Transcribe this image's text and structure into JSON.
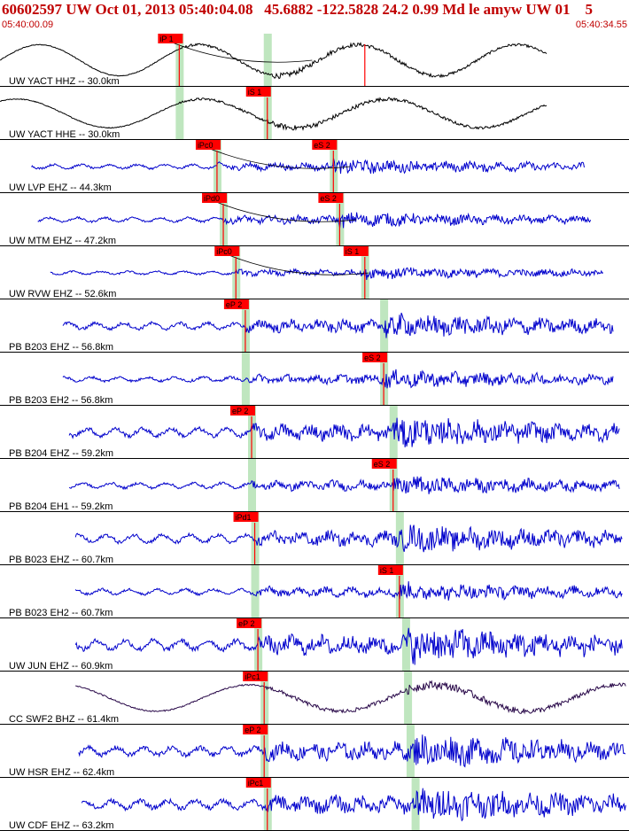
{
  "header": {
    "title": "60602597 UW Oct 01, 2013 05:40:04.08   45.6882 -122.5828 24.2 0.99 Md le amyw UW 01    5",
    "start_time": "05:40:00.09",
    "end_time": "05:40:34.55"
  },
  "colors": {
    "header_text": "#c00000",
    "trace_blue": "#0000cc",
    "trace_black": "#000000",
    "trace_purple": "#2a0a4a",
    "pick_box": "#ff0000",
    "window_band": "#bfe6bf",
    "divider": "#000000"
  },
  "chart_data": {
    "type": "line",
    "title": "",
    "x_range_seconds": [
      0,
      34.46
    ],
    "tracks": [
      {
        "label": "UW YACT HHZ -- 30.0km",
        "color": "black",
        "amp": 0.65,
        "freq": 0.7,
        "noise": 0.05,
        "start": 0.0,
        "end": 0.87,
        "picks": [
          {
            "label": "iP 1",
            "x": 0.285
          },
          {
            "label": "",
            "x": 0.58
          }
        ],
        "windows": [
          0.285,
          0.425
        ],
        "moveout": 1
      },
      {
        "label": "UW YACT HHE -- 30.0km",
        "color": "black",
        "amp": 0.6,
        "freq": 0.6,
        "noise": 0.05,
        "start": 0.0,
        "end": 0.87,
        "picks": [
          {
            "label": "iS 1",
            "x": 0.425
          }
        ],
        "windows": [
          0.285,
          0.425
        ],
        "moveout": 0
      },
      {
        "label": "UW LVP EHZ -- 44.3km",
        "color": "blue",
        "amp": 0.08,
        "freq": 4,
        "noise": 0.12,
        "start": 0.05,
        "end": 0.93,
        "picks": [
          {
            "label": "iPc0",
            "x": 0.345
          },
          {
            "label": "eS 2",
            "x": 0.53
          }
        ],
        "windows": [
          0.345,
          0.53
        ],
        "moveout": 1
      },
      {
        "label": "UW MTM EHZ -- 47.2km",
        "color": "blue",
        "amp": 0.08,
        "freq": 4,
        "noise": 0.12,
        "start": 0.06,
        "end": 0.94,
        "picks": [
          {
            "label": "iPd0",
            "x": 0.355
          },
          {
            "label": "eS 2",
            "x": 0.54
          }
        ],
        "windows": [
          0.355,
          0.54
        ],
        "moveout": 1
      },
      {
        "label": "UW RVW EHZ -- 52.6km",
        "color": "blue",
        "amp": 0.06,
        "freq": 4,
        "noise": 0.1,
        "start": 0.08,
        "end": 0.96,
        "picks": [
          {
            "label": "iPc0",
            "x": 0.375
          },
          {
            "label": "iS 1",
            "x": 0.58
          }
        ],
        "windows": [
          0.375,
          0.58
        ],
        "moveout": 1
      },
      {
        "label": "PB B203 EHZ -- 56.8km",
        "color": "blue",
        "amp": 0.12,
        "freq": 4,
        "noise": 0.2,
        "start": 0.1,
        "end": 0.975,
        "picks": [
          {
            "label": "eP 2",
            "x": 0.39
          }
        ],
        "windows": [
          0.39,
          0.61
        ],
        "moveout": 0
      },
      {
        "label": "PB B203 EH2 -- 56.8km",
        "color": "blue",
        "amp": 0.08,
        "freq": 4,
        "noise": 0.15,
        "start": 0.1,
        "end": 0.975,
        "picks": [
          {
            "label": "eS 2",
            "x": 0.61
          }
        ],
        "windows": [
          0.39,
          0.61
        ],
        "moveout": 0
      },
      {
        "label": "PB B204 EHZ -- 59.2km",
        "color": "blue",
        "amp": 0.15,
        "freq": 4,
        "noise": 0.25,
        "start": 0.11,
        "end": 0.985,
        "picks": [
          {
            "label": "eP 2",
            "x": 0.4
          }
        ],
        "windows": [
          0.4,
          0.625
        ],
        "moveout": 0
      },
      {
        "label": "PB B204 EH1 -- 59.2km",
        "color": "blue",
        "amp": 0.1,
        "freq": 4,
        "noise": 0.15,
        "start": 0.11,
        "end": 0.985,
        "picks": [
          {
            "label": "eS 2",
            "x": 0.625
          }
        ],
        "windows": [
          0.4,
          0.625
        ],
        "moveout": 0
      },
      {
        "label": "PB B023 EHZ -- 60.7km",
        "color": "blue",
        "amp": 0.15,
        "freq": 4,
        "noise": 0.22,
        "start": 0.12,
        "end": 0.99,
        "picks": [
          {
            "label": "iPd1",
            "x": 0.405
          }
        ],
        "windows": [
          0.405,
          0.635
        ],
        "moveout": 0
      },
      {
        "label": "PB B023 EH2 -- 60.7km",
        "color": "blue",
        "amp": 0.1,
        "freq": 4,
        "noise": 0.15,
        "start": 0.12,
        "end": 0.99,
        "picks": [
          {
            "label": "iS 1",
            "x": 0.635
          }
        ],
        "windows": [
          0.405,
          0.635
        ],
        "moveout": 0
      },
      {
        "label": "UW JUN EHZ -- 60.9km",
        "color": "blue",
        "amp": 0.18,
        "freq": 4,
        "noise": 0.3,
        "start": 0.12,
        "end": 0.99,
        "picks": [
          {
            "label": "eP 2",
            "x": 0.41
          }
        ],
        "windows": [
          0.41,
          0.645
        ],
        "moveout": 0
      },
      {
        "label": "CC SWF2 BHZ -- 61.4km",
        "color": "purple",
        "amp": 0.55,
        "freq": 0.6,
        "noise": 0.08,
        "start": 0.12,
        "end": 0.995,
        "picks": [
          {
            "label": "iPc1",
            "x": 0.42
          }
        ],
        "windows": [
          0.42,
          0.648
        ],
        "moveout": 0
      },
      {
        "label": "UW HSR EHZ -- 62.4km",
        "color": "blue",
        "amp": 0.15,
        "freq": 4,
        "noise": 0.28,
        "start": 0.125,
        "end": 0.995,
        "picks": [
          {
            "label": "eP 2",
            "x": 0.42
          }
        ],
        "windows": [
          0.42,
          0.652
        ],
        "moveout": 0
      },
      {
        "label": "UW CDF EHZ -- 63.2km",
        "color": "blue",
        "amp": 0.15,
        "freq": 4,
        "noise": 0.28,
        "start": 0.13,
        "end": 0.995,
        "picks": [
          {
            "label": "iPc1",
            "x": 0.425
          }
        ],
        "windows": [
          0.425,
          0.66
        ],
        "moveout": 0
      }
    ]
  }
}
